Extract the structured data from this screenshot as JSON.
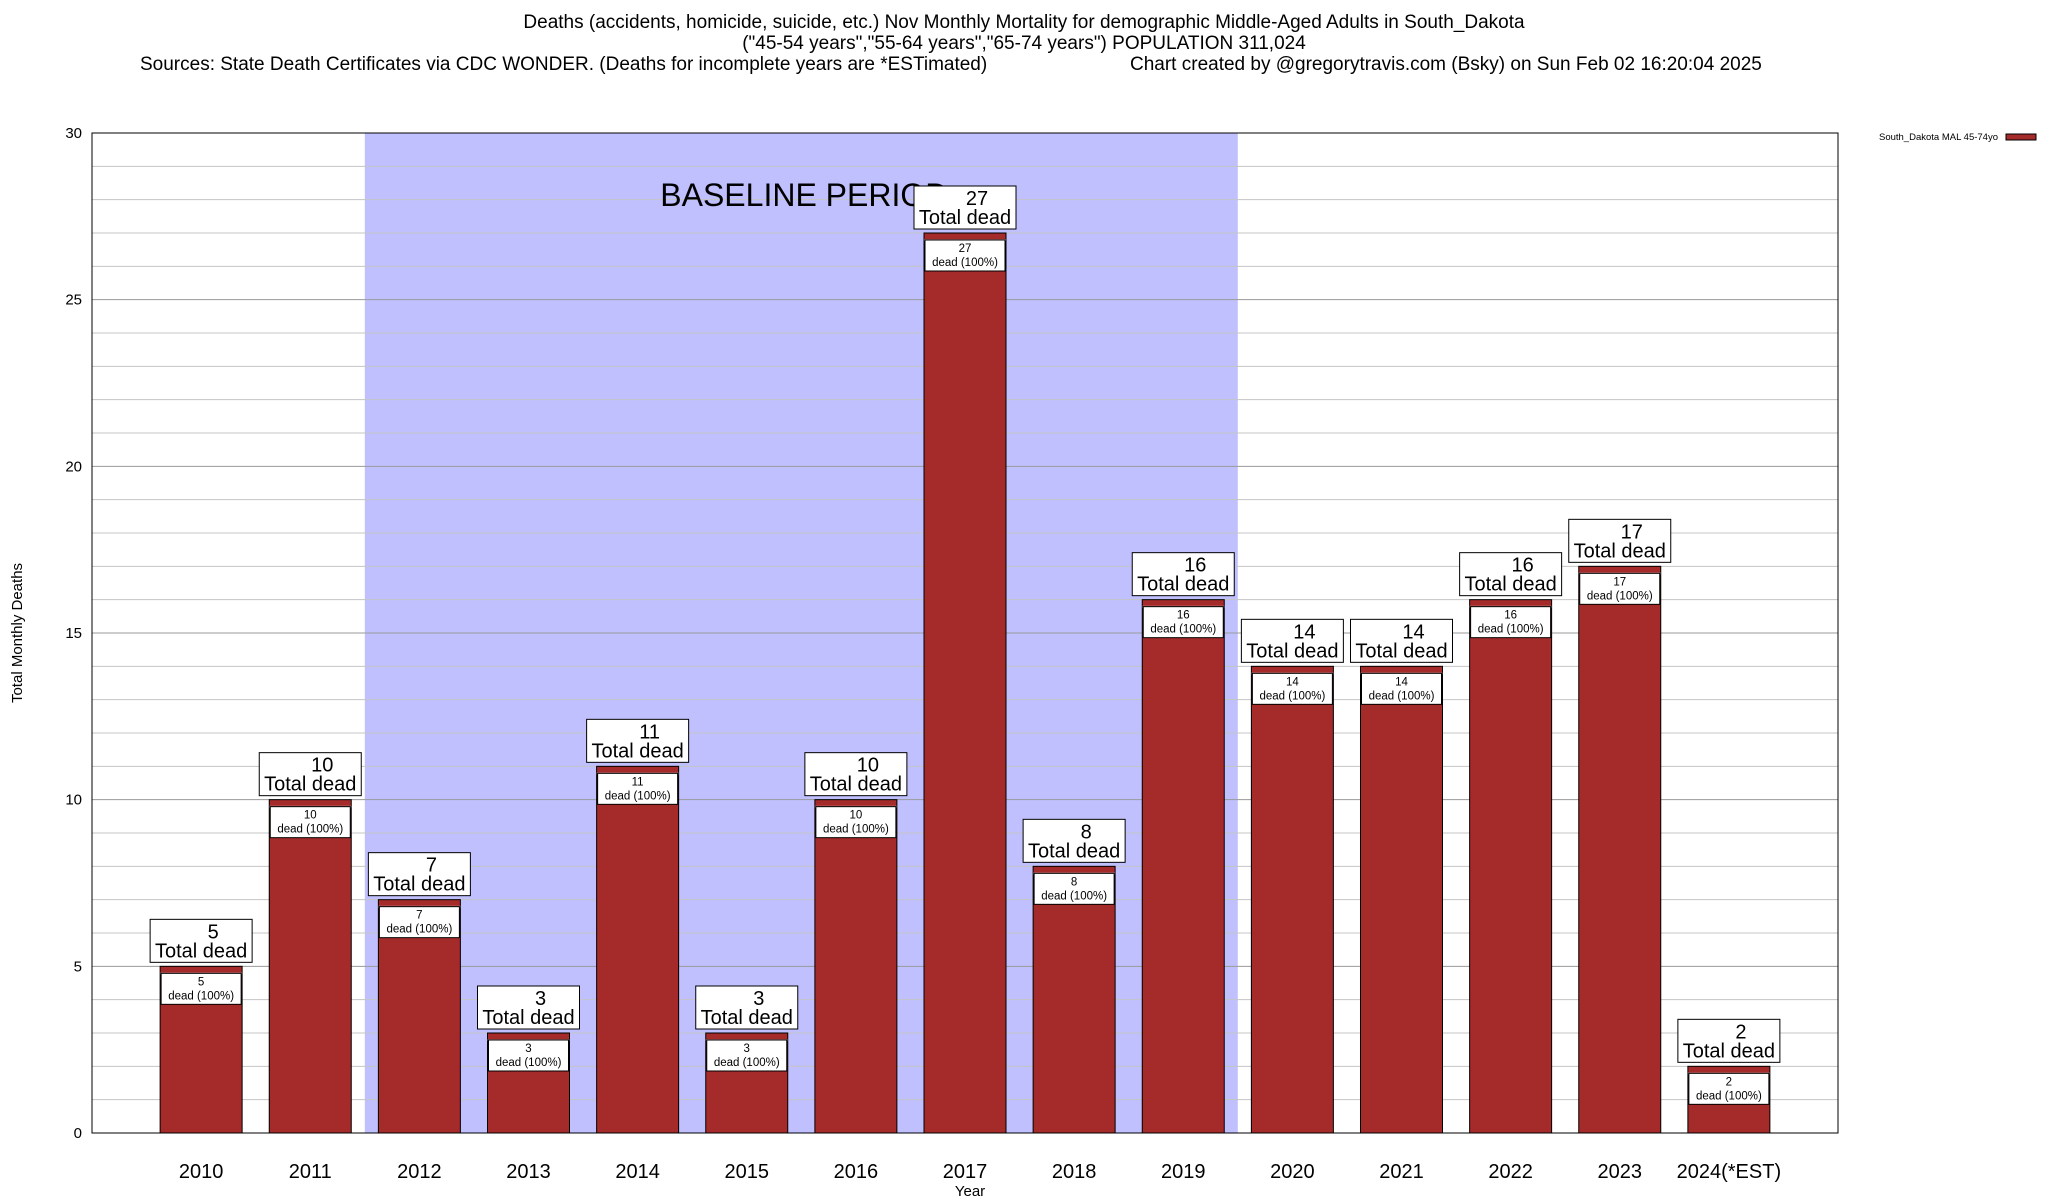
{
  "header": {
    "title": "Deaths (accidents, homicide, suicide, etc.) Nov Monthly Mortality for demographic Middle-Aged Adults in South_Dakota",
    "subtitle": "(\"45-54 years\",\"55-64 years\",\"65-74 years\") POPULATION 311,024",
    "sources": "Sources: State Death Certificates via CDC WONDER. (Deaths for incomplete years are *ESTimated)",
    "credit": "Chart created by @gregorytravis.com (Bsky) on Sun Feb 02 16:20:04 2025"
  },
  "chart_data": {
    "type": "bar",
    "xlabel": "Year",
    "ylabel": "Total Monthly Deaths",
    "ylim": [
      0,
      30
    ],
    "yticks": [
      0,
      5,
      10,
      15,
      20,
      25,
      30
    ],
    "categories": [
      "2010",
      "2011",
      "2012",
      "2013",
      "2014",
      "2015",
      "2016",
      "2017",
      "2018",
      "2019",
      "2020",
      "2021",
      "2022",
      "2023",
      "2024(*EST)"
    ],
    "series": [
      {
        "name": "South_Dakota MAL 45-74yo",
        "color": "#a52a2a",
        "values": [
          5,
          10,
          7,
          3,
          11,
          3,
          10,
          27,
          8,
          16,
          14,
          14,
          16,
          17,
          2
        ]
      }
    ],
    "total_label": "Total dead",
    "inner_label_suffix": "dead (100%)",
    "baseline": {
      "label": "BASELINE PERIOD",
      "start": "2012",
      "end": "2019",
      "color": "#c0c0ff"
    },
    "legend_position": "top-right",
    "grid": true
  }
}
